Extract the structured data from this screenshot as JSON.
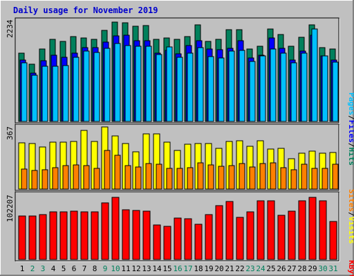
{
  "title": "Daily usage for November 2019",
  "colors": {
    "background": "#c0c0c0",
    "hits": "#00805c",
    "files": "#0000ff",
    "pages": "#00c0ff",
    "visits": "#ffff00",
    "sites": "#ff8000",
    "kbytes": "#ff0000",
    "weekday_label": "#000000",
    "weekend_label": "#00805c"
  },
  "legends": {
    "pages": "Pages",
    "files": "Files",
    "hits": "Hits",
    "visits": "Visits",
    "sites": "Sites",
    "kbytes": "KBytes",
    "sep": "/"
  },
  "chart_data": [
    {
      "type": "bar",
      "title": "Daily usage for November 2019",
      "ymax_label": "2234",
      "ylim": [
        0,
        2234
      ],
      "categories": [
        "1",
        "2",
        "3",
        "4",
        "5",
        "6",
        "7",
        "8",
        "9",
        "10",
        "11",
        "12",
        "13",
        "14",
        "15",
        "16",
        "17",
        "18",
        "19",
        "20",
        "21",
        "22",
        "23",
        "24",
        "25",
        "26",
        "27",
        "28",
        "29",
        "30",
        "31"
      ],
      "weekend_days": [
        "2",
        "3",
        "9",
        "10",
        "16",
        "17",
        "23",
        "24",
        "30",
        "31"
      ],
      "series": [
        {
          "name": "Hits",
          "color_key": "hits",
          "values": [
            1490,
            1250,
            1590,
            1790,
            1750,
            1860,
            1820,
            1790,
            2000,
            2180,
            2160,
            2080,
            2100,
            1790,
            1820,
            1790,
            1860,
            2110,
            1750,
            1790,
            2010,
            2010,
            1580,
            1640,
            2030,
            1900,
            1650,
            1840,
            2120,
            1620,
            1580
          ]
        },
        {
          "name": "Files",
          "color_key": "files",
          "values": [
            1340,
            1050,
            1330,
            1450,
            1410,
            1490,
            1610,
            1620,
            1740,
            1870,
            1880,
            1770,
            1760,
            1500,
            1560,
            1480,
            1660,
            1770,
            1590,
            1570,
            1600,
            1770,
            1390,
            1450,
            1820,
            1600,
            1350,
            1540,
            1880,
            1440,
            1350
          ]
        },
        {
          "name": "Pages",
          "color_key": "pages",
          "values": [
            1280,
            1010,
            1210,
            1210,
            1220,
            1400,
            1540,
            1510,
            1600,
            1700,
            1660,
            1640,
            1640,
            1470,
            1630,
            1410,
            1490,
            1610,
            1420,
            1390,
            1540,
            1550,
            1310,
            1430,
            1580,
            1490,
            1290,
            1500,
            2030,
            1440,
            1300
          ]
        }
      ]
    },
    {
      "type": "bar",
      "ymax_label": "367",
      "ylim": [
        0,
        367
      ],
      "series": [
        {
          "name": "Visits",
          "color_key": "visits",
          "values": [
            267,
            264,
            245,
            270,
            270,
            275,
            338,
            274,
            359,
            309,
            264,
            215,
            321,
            318,
            272,
            223,
            260,
            264,
            264,
            236,
            275,
            280,
            249,
            280,
            230,
            235,
            176,
            207,
            218,
            206,
            212
          ]
        },
        {
          "name": "Sites",
          "color_key": "sites",
          "values": [
            115,
            108,
            110,
            122,
            134,
            138,
            136,
            121,
            222,
            195,
            137,
            127,
            146,
            145,
            119,
            118,
            123,
            151,
            141,
            132,
            137,
            147,
            127,
            146,
            150,
            123,
            111,
            145,
            118,
            119,
            145
          ]
        }
      ]
    },
    {
      "type": "bar",
      "ymax_label": "102207",
      "ylim": [
        0,
        102207
      ],
      "series": [
        {
          "name": "KBytes",
          "color_key": "kbytes",
          "values": [
            71000,
            71300,
            73800,
            78000,
            78600,
            80000,
            77900,
            77900,
            93100,
            102200,
            82200,
            80600,
            79100,
            56800,
            55000,
            68300,
            67000,
            58400,
            73400,
            88500,
            95200,
            69500,
            78100,
            97000,
            97000,
            72200,
            80000,
            96500,
            101800,
            96600,
            62000
          ]
        }
      ]
    }
  ]
}
